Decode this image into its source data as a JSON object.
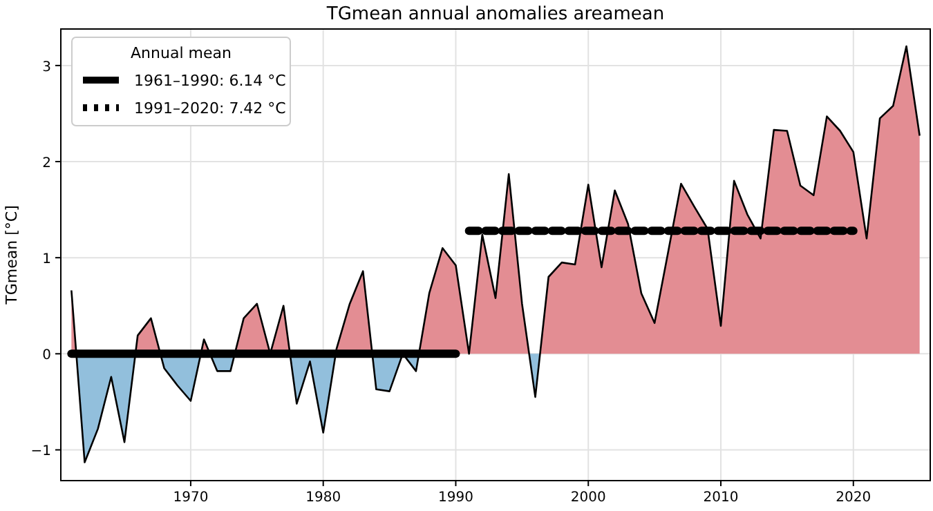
{
  "chart_data": {
    "type": "area",
    "title": "TGmean annual anomalies areamean",
    "ylabel": "TGmean [°C]",
    "legend_title": "Annual mean",
    "legend": "top left",
    "grid": true,
    "x": [
      1961,
      1962,
      1963,
      1964,
      1965,
      1966,
      1967,
      1968,
      1969,
      1970,
      1971,
      1972,
      1973,
      1974,
      1975,
      1976,
      1977,
      1978,
      1979,
      1980,
      1981,
      1982,
      1983,
      1984,
      1985,
      1986,
      1987,
      1988,
      1989,
      1990,
      1991,
      1992,
      1993,
      1994,
      1995,
      1996,
      1997,
      1998,
      1999,
      2000,
      2001,
      2002,
      2003,
      2004,
      2005,
      2006,
      2007,
      2008,
      2009,
      2010,
      2011,
      2012,
      2013,
      2014,
      2015,
      2016,
      2017,
      2018,
      2019,
      2020,
      2021,
      2022,
      2023,
      2024,
      2025
    ],
    "xlim": [
      1960.2,
      2025.8
    ],
    "xticks": [
      1970,
      1980,
      1990,
      2000,
      2010,
      2020
    ],
    "ylim": [
      -1.32,
      3.38
    ],
    "yticks": [
      -1,
      0,
      1,
      2,
      3
    ],
    "series": [
      {
        "color": "#000000",
        "values": [
          0.66,
          -1.13,
          -0.78,
          -0.24,
          -0.92,
          0.19,
          0.37,
          -0.15,
          -0.33,
          -0.49,
          0.15,
          -0.18,
          -0.18,
          0.37,
          0.52,
          0.0,
          0.5,
          -0.52,
          -0.08,
          -0.82,
          0.05,
          0.52,
          0.86,
          -0.37,
          -0.39,
          0.0,
          -0.18,
          0.63,
          1.1,
          0.92,
          0.0,
          1.24,
          0.58,
          1.87,
          0.52,
          -0.45,
          0.8,
          0.95,
          0.93,
          1.76,
          0.9,
          1.7,
          1.35,
          0.63,
          0.32,
          1.04,
          1.77,
          1.53,
          1.3,
          0.29,
          1.8,
          1.45,
          1.2,
          2.33,
          2.32,
          1.75,
          1.65,
          2.47,
          2.32,
          2.1,
          1.2,
          2.45,
          2.58,
          3.2,
          2.27
        ],
        "colors": [
          "#e38d93",
          "#92bfdc",
          "#92bfdc",
          "#92bfdc",
          "#92bfdc",
          "#e38d93",
          "#e38d93",
          "#92bfdc",
          "#92bfdc",
          "#92bfdc",
          "#e38d93",
          "#92bfdc",
          "#92bfdc",
          "#e38d93",
          "#e38d93",
          "#e38d93",
          "#e38d93",
          "#92bfdc",
          "#92bfdc",
          "#92bfdc",
          "#e38d93",
          "#e38d93",
          "#e38d93",
          "#92bfdc",
          "#92bfdc",
          "#e38d93",
          "#92bfdc",
          "#e38d93",
          "#e38d93",
          "#e38d93",
          "#e38d93",
          "#e38d93",
          "#e38d93",
          "#e38d93",
          "#e38d93",
          "#92bfdc",
          "#e38d93",
          "#e38d93",
          "#e38d93",
          "#e38d93",
          "#e38d93",
          "#e38d93",
          "#e38d93",
          "#e38d93",
          "#e38d93",
          "#e38d93",
          "#e38d93",
          "#e38d93",
          "#e38d93",
          "#e38d93",
          "#e38d93",
          "#e38d93",
          "#e38d93",
          "#e38d93",
          "#e38d93",
          "#e38d93",
          "#e38d93",
          "#e38d93",
          "#e38d93",
          "#e38d93",
          "#e38d93",
          "#e38d93",
          "#e38d93",
          "#e38d93",
          "#e38d93"
        ]
      },
      {
        "type": "line",
        "name": "1961–1990: 6.14 °C",
        "color": "#000000",
        "line_style": "solid",
        "x": [
          1961,
          1990
        ],
        "values": [
          0,
          0
        ]
      },
      {
        "type": "line",
        "name": "1991–2020: 7.42 °C",
        "color": "#000000",
        "line_style": "dashed",
        "x": [
          1991,
          2020
        ],
        "values": [
          1.28,
          1.28
        ]
      }
    ]
  }
}
